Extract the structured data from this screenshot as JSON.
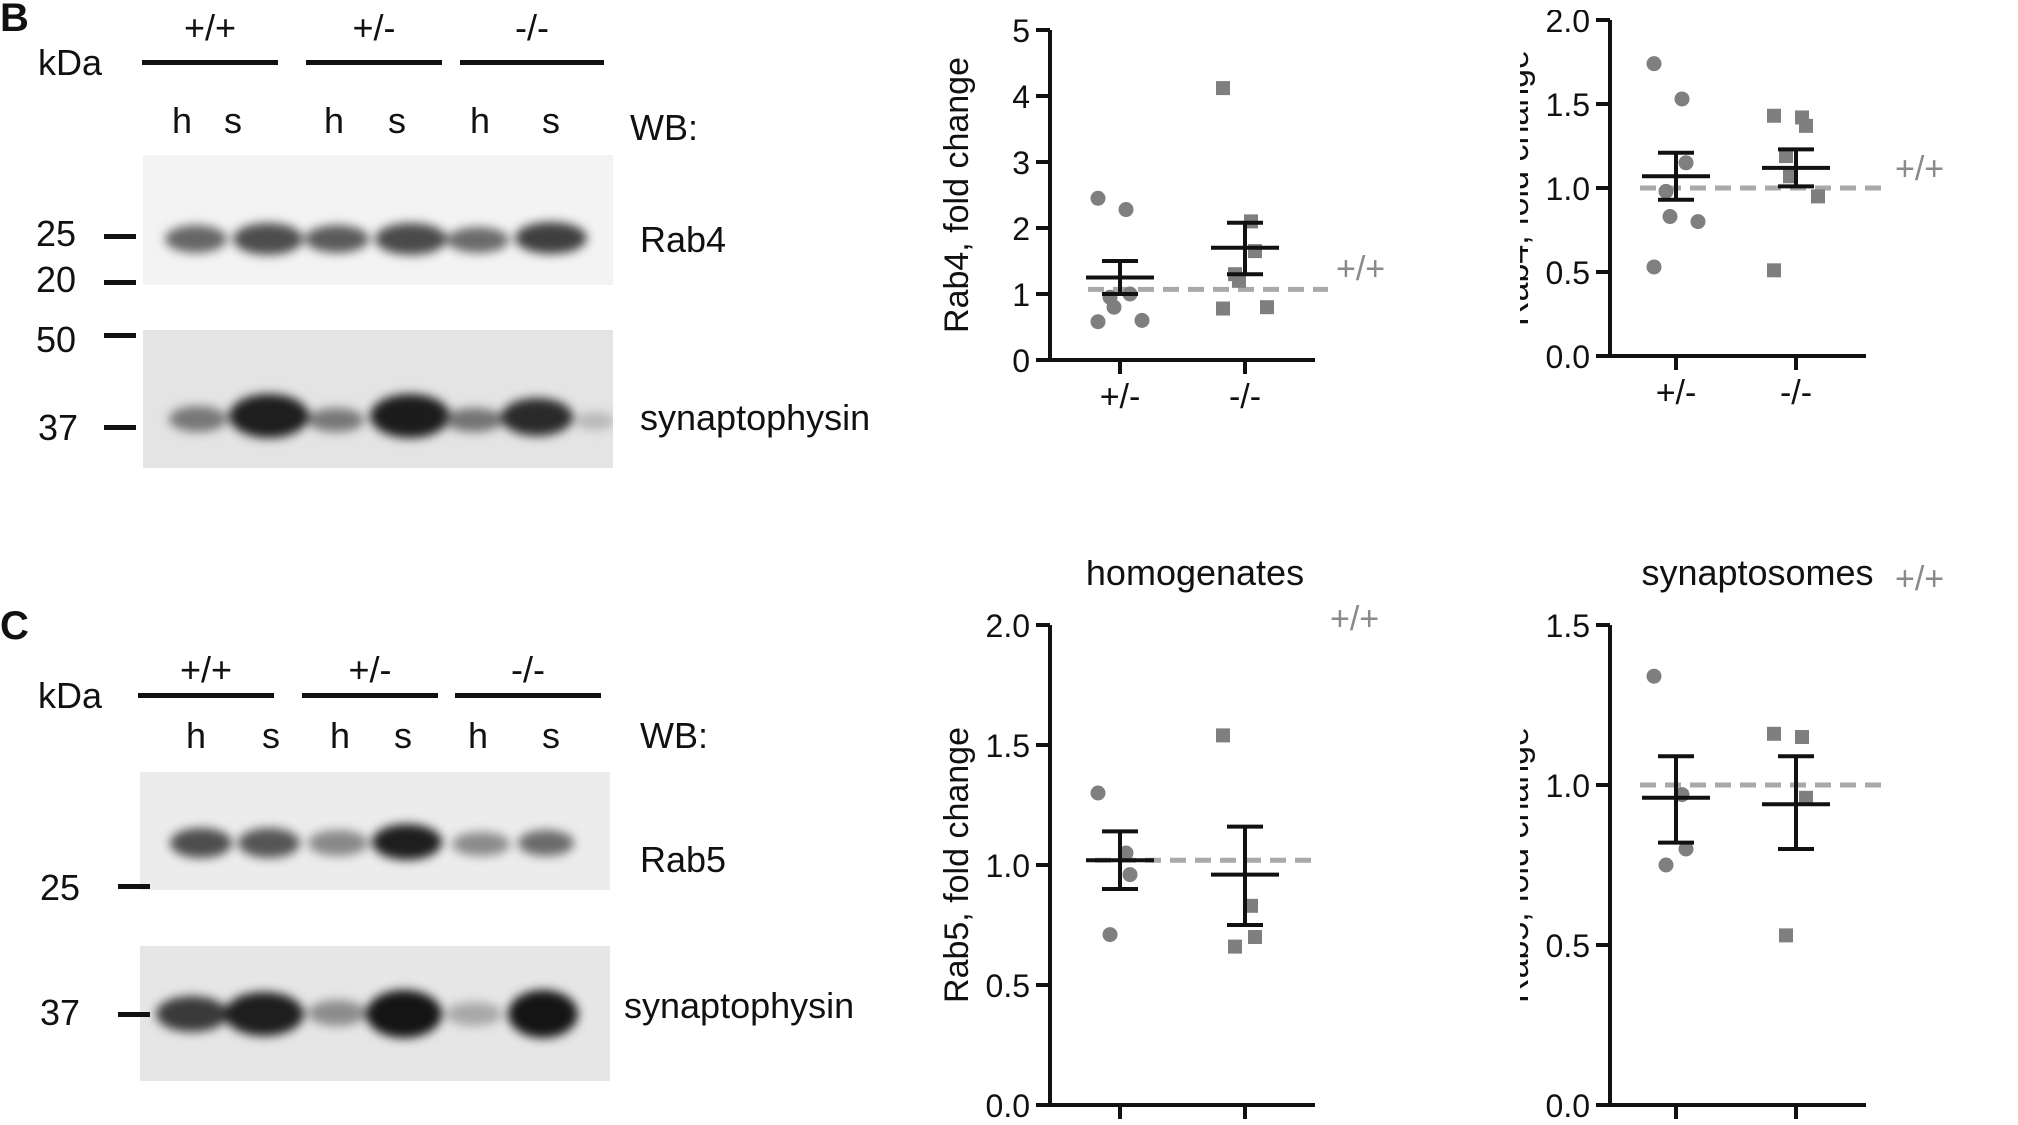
{
  "figure": {
    "panel_B": {
      "letter": "B",
      "blot": {
        "kda_label": "kDa",
        "wb_label": "WB:",
        "genotypes": [
          "+/+",
          "+/-",
          "-/-"
        ],
        "lanes": [
          "h",
          "s",
          "h",
          "s",
          "h",
          "s"
        ],
        "markers_top": [
          "25",
          "20"
        ],
        "markers_bottom": [
          "50",
          "37"
        ],
        "protein_top": "Rab4",
        "protein_bottom": "synaptophysin"
      }
    },
    "panel_C": {
      "letter": "C",
      "blot": {
        "kda_label": "kDa",
        "wb_label": "WB:",
        "genotypes": [
          "+/+",
          "+/-",
          "-/-"
        ],
        "lanes": [
          "h",
          "s",
          "h",
          "s",
          "h",
          "s"
        ],
        "markers_top": [
          "25"
        ],
        "markers_bottom": [
          "37"
        ],
        "protein_top": "Rab5",
        "protein_bottom": "synaptophysin"
      }
    },
    "reference_label": "+/+"
  },
  "chart_data": [
    {
      "type": "scatter",
      "title": "",
      "xlabel": "",
      "ylabel": "Rab4, fold change",
      "categories": [
        "+/-",
        "-/-"
      ],
      "ylim": [
        0,
        5
      ],
      "yticks": [
        "0",
        "1",
        "2",
        "3",
        "4",
        "5"
      ],
      "reference_value": 1.07,
      "series": [
        {
          "marker": "circle",
          "points": [
            2.45,
            2.28,
            1.0,
            0.95,
            0.8,
            0.6,
            0.58
          ],
          "mean": 1.25,
          "sem_low": 1.0,
          "sem_high": 1.5
        },
        {
          "marker": "square",
          "points": [
            4.12,
            2.1,
            1.65,
            1.3,
            1.2,
            0.8,
            0.78
          ],
          "mean": 1.7,
          "sem_low": 1.3,
          "sem_high": 2.08
        }
      ]
    },
    {
      "type": "scatter",
      "title": "",
      "xlabel": "",
      "ylabel": "Rab4, fold change",
      "categories": [
        "+/-",
        "-/-"
      ],
      "ylim": [
        0,
        2
      ],
      "yticks": [
        "0.0",
        "0.5",
        "1.0",
        "1.5",
        "2.0"
      ],
      "reference_value": 1.0,
      "series": [
        {
          "marker": "circle",
          "points": [
            1.74,
            1.53,
            1.15,
            0.98,
            0.83,
            0.8,
            0.53
          ],
          "mean": 1.07,
          "sem_low": 0.93,
          "sem_high": 1.21
        },
        {
          "marker": "square",
          "points": [
            1.43,
            1.42,
            1.37,
            1.19,
            1.07,
            0.95,
            0.51
          ],
          "mean": 1.12,
          "sem_low": 1.01,
          "sem_high": 1.23
        }
      ]
    },
    {
      "type": "scatter",
      "title": "homogenates",
      "xlabel": "",
      "ylabel": "Rab5, fold change",
      "categories": [
        "+/-",
        "-/-"
      ],
      "ylim": [
        0,
        2
      ],
      "yticks": [
        "0.0",
        "0.5",
        "1.0",
        "1.5",
        "2.0"
      ],
      "reference_value": 1.02,
      "series": [
        {
          "marker": "circle",
          "points": [
            1.3,
            1.05,
            0.96,
            0.71
          ],
          "mean": 1.02,
          "sem_low": 0.9,
          "sem_high": 1.14
        },
        {
          "marker": "square",
          "points": [
            1.54,
            0.83,
            0.7,
            0.66
          ],
          "mean": 0.96,
          "sem_low": 0.75,
          "sem_high": 1.16
        }
      ]
    },
    {
      "type": "scatter",
      "title": "synaptosomes",
      "xlabel": "",
      "ylabel": "Rab5, fold change",
      "categories": [
        "+/-",
        "-/-"
      ],
      "ylim": [
        0,
        1.5
      ],
      "yticks": [
        "0.0",
        "0.5",
        "1.0",
        "1.5"
      ],
      "reference_value": 1.0,
      "series": [
        {
          "marker": "circle",
          "points": [
            1.34,
            0.97,
            0.8,
            0.75
          ],
          "mean": 0.96,
          "sem_low": 0.82,
          "sem_high": 1.09
        },
        {
          "marker": "square",
          "points": [
            1.16,
            1.15,
            0.96,
            0.53
          ],
          "mean": 0.94,
          "sem_low": 0.8,
          "sem_high": 1.09
        }
      ]
    }
  ]
}
